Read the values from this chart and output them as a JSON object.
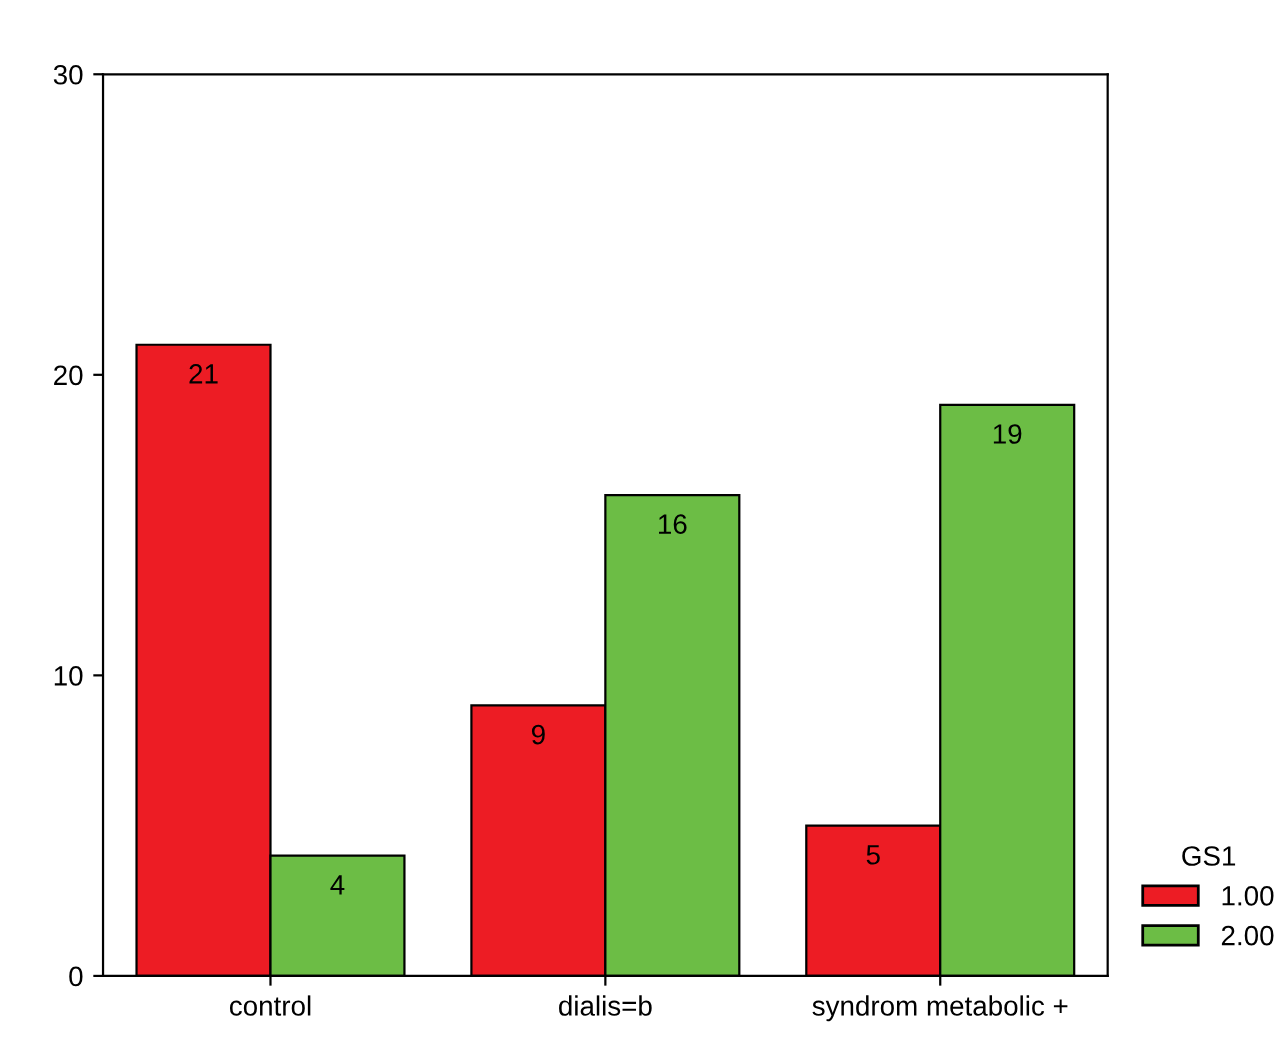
{
  "chart_data": {
    "type": "bar",
    "categories": [
      "control",
      "dialis=b",
      "syndrom metabolic +"
    ],
    "series": [
      {
        "name": "1.00",
        "color": "#ed1c24",
        "values": [
          21,
          9,
          5
        ]
      },
      {
        "name": "2.00",
        "color": "#6cbd45",
        "values": [
          4,
          16,
          19
        ]
      }
    ],
    "legend_title": "GS1",
    "legend": "right",
    "ylim": [
      0,
      30
    ],
    "yticks": [
      0,
      10,
      20,
      30
    ],
    "data_labels": true,
    "grid": false
  }
}
